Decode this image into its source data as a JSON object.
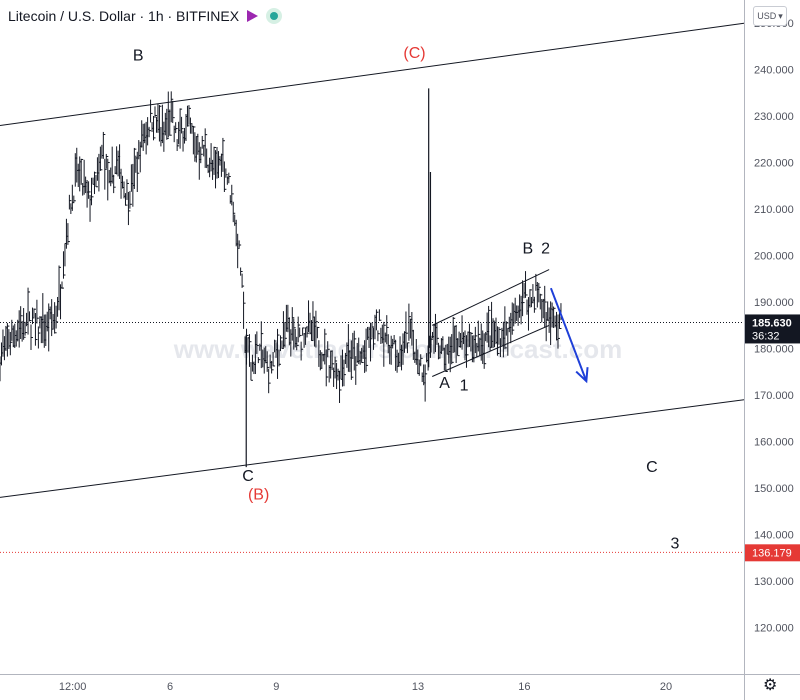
{
  "header": {
    "title": "Litecoin / U.S. Dollar · 1h · BITFINEX"
  },
  "currency_button": {
    "label": "USD",
    "chevron_icon": "chevron-down-icon"
  },
  "watermark": "www.wavetraders.com/forecast.com",
  "icons": {
    "flag": "flag-icon",
    "status": "market-status-icon",
    "settings": "gear-icon"
  },
  "colors": {
    "price_line": "#131722",
    "wave_red": "#e53935",
    "arrow_blue": "#1e3fd8",
    "last_price_bg": "#131722",
    "target_line": "#e53935",
    "flag": "#9c27b0",
    "status_dot": "#26a69a"
  },
  "chart_data": {
    "type": "line",
    "style": "hlc bars",
    "ylim": [
      110,
      255
    ],
    "y_ticks": [
      "250.000",
      "240.000",
      "230.000",
      "220.000",
      "210.000",
      "200.000",
      "190.000",
      "180.000",
      "170.000",
      "160.000",
      "150.000",
      "140.000",
      "130.000",
      "120.000"
    ],
    "y_tick_values": [
      250,
      240,
      230,
      220,
      210,
      200,
      190,
      180,
      170,
      160,
      150,
      140,
      130,
      120
    ],
    "x_ticks": [
      "12:00",
      "6",
      "9",
      "13",
      "16",
      "20"
    ],
    "x_tick_values": [
      0.25,
      3.0,
      6.0,
      10.0,
      13.0,
      17.0
    ],
    "x_unit": "days from Dec 5 00:00",
    "xlim": [
      -1.8,
      19.2
    ],
    "price_path": [
      [
        -1.8,
        178
      ],
      [
        -1.5,
        183
      ],
      [
        -1.0,
        186
      ],
      [
        -0.5,
        184
      ],
      [
        -0.3,
        186
      ],
      [
        -0.1,
        192
      ],
      [
        0.0,
        200
      ],
      [
        0.2,
        212
      ],
      [
        0.4,
        218
      ],
      [
        0.7,
        212
      ],
      [
        1.0,
        217
      ],
      [
        1.1,
        223
      ],
      [
        1.3,
        214
      ],
      [
        1.5,
        220
      ],
      [
        1.8,
        213
      ],
      [
        2.0,
        217
      ],
      [
        2.2,
        225
      ],
      [
        2.5,
        230
      ],
      [
        2.8,
        226
      ],
      [
        3.0,
        230
      ],
      [
        3.2,
        225
      ],
      [
        3.5,
        229
      ],
      [
        3.7,
        224
      ],
      [
        4.0,
        222
      ],
      [
        4.2,
        218
      ],
      [
        4.5,
        221
      ],
      [
        4.8,
        210
      ],
      [
        5.0,
        197
      ],
      [
        5.1,
        183
      ],
      [
        5.3,
        176
      ],
      [
        5.5,
        180
      ],
      [
        5.8,
        175
      ],
      [
        6.0,
        179
      ],
      [
        6.3,
        184
      ],
      [
        6.6,
        181
      ],
      [
        6.9,
        185
      ],
      [
        7.2,
        181
      ],
      [
        7.5,
        177
      ],
      [
        7.8,
        175
      ],
      [
        8.0,
        180
      ],
      [
        8.3,
        177
      ],
      [
        8.6,
        181
      ],
      [
        8.9,
        185
      ],
      [
        9.2,
        181
      ],
      [
        9.5,
        178
      ],
      [
        9.8,
        184
      ],
      [
        10.0,
        178
      ],
      [
        10.2,
        175
      ],
      [
        10.35,
        182
      ],
      [
        10.5,
        181
      ],
      [
        10.8,
        178
      ],
      [
        11.1,
        182
      ],
      [
        11.4,
        180
      ],
      [
        11.7,
        181
      ],
      [
        12.0,
        183
      ],
      [
        12.3,
        182
      ],
      [
        12.6,
        184
      ],
      [
        12.8,
        188
      ],
      [
        13.0,
        191
      ],
      [
        13.2,
        190
      ],
      [
        13.35,
        193
      ],
      [
        13.5,
        189
      ],
      [
        13.7,
        186
      ],
      [
        13.9,
        185
      ],
      [
        14.05,
        185.63
      ]
    ],
    "spikes": [
      {
        "x": 5.15,
        "low": 154.5,
        "high": 183
      },
      {
        "x": 10.3,
        "low": 176,
        "high": 236
      },
      {
        "x": 10.35,
        "low": 178,
        "high": 218
      }
    ],
    "last_price": {
      "label": "185.630",
      "value": 185.63,
      "countdown": "36:32"
    },
    "target": {
      "label": "136.179",
      "value": 136.179
    },
    "channel_lines": [
      {
        "name": "upper-channel-line",
        "from": [
          -1.8,
          228
        ],
        "to": [
          19.2,
          250
        ]
      },
      {
        "name": "lower-channel-line",
        "from": [
          -1.8,
          148
        ],
        "to": [
          19.2,
          169
        ]
      }
    ],
    "wedge_lines": [
      {
        "name": "wedge-upper-line",
        "from": [
          10.4,
          185
        ],
        "to": [
          13.7,
          197
        ]
      },
      {
        "name": "wedge-lower-line",
        "from": [
          10.4,
          174
        ],
        "to": [
          13.7,
          185
        ]
      }
    ],
    "arrow": {
      "from": [
        13.75,
        193
      ],
      "to": [
        14.75,
        173
      ]
    },
    "labels": [
      {
        "text": "B",
        "x": 2.1,
        "y": 242,
        "color": "black"
      },
      {
        "text": "(C)",
        "x": 9.9,
        "y": 242.5,
        "color": "red"
      },
      {
        "text": "C",
        "x": 5.2,
        "y": 151.5,
        "color": "black"
      },
      {
        "text": "(B)",
        "x": 5.5,
        "y": 147.5,
        "color": "red"
      },
      {
        "text": "A",
        "x": 10.75,
        "y": 171.5,
        "color": "black"
      },
      {
        "text": "1",
        "x": 11.3,
        "y": 171,
        "color": "black"
      },
      {
        "text": "B",
        "x": 13.1,
        "y": 200.5,
        "color": "black"
      },
      {
        "text": "2",
        "x": 13.6,
        "y": 200.5,
        "color": "black"
      },
      {
        "text": "C",
        "x": 16.6,
        "y": 153.5,
        "color": "black"
      },
      {
        "text": "3",
        "x": 17.25,
        "y": 137,
        "color": "black"
      }
    ]
  }
}
